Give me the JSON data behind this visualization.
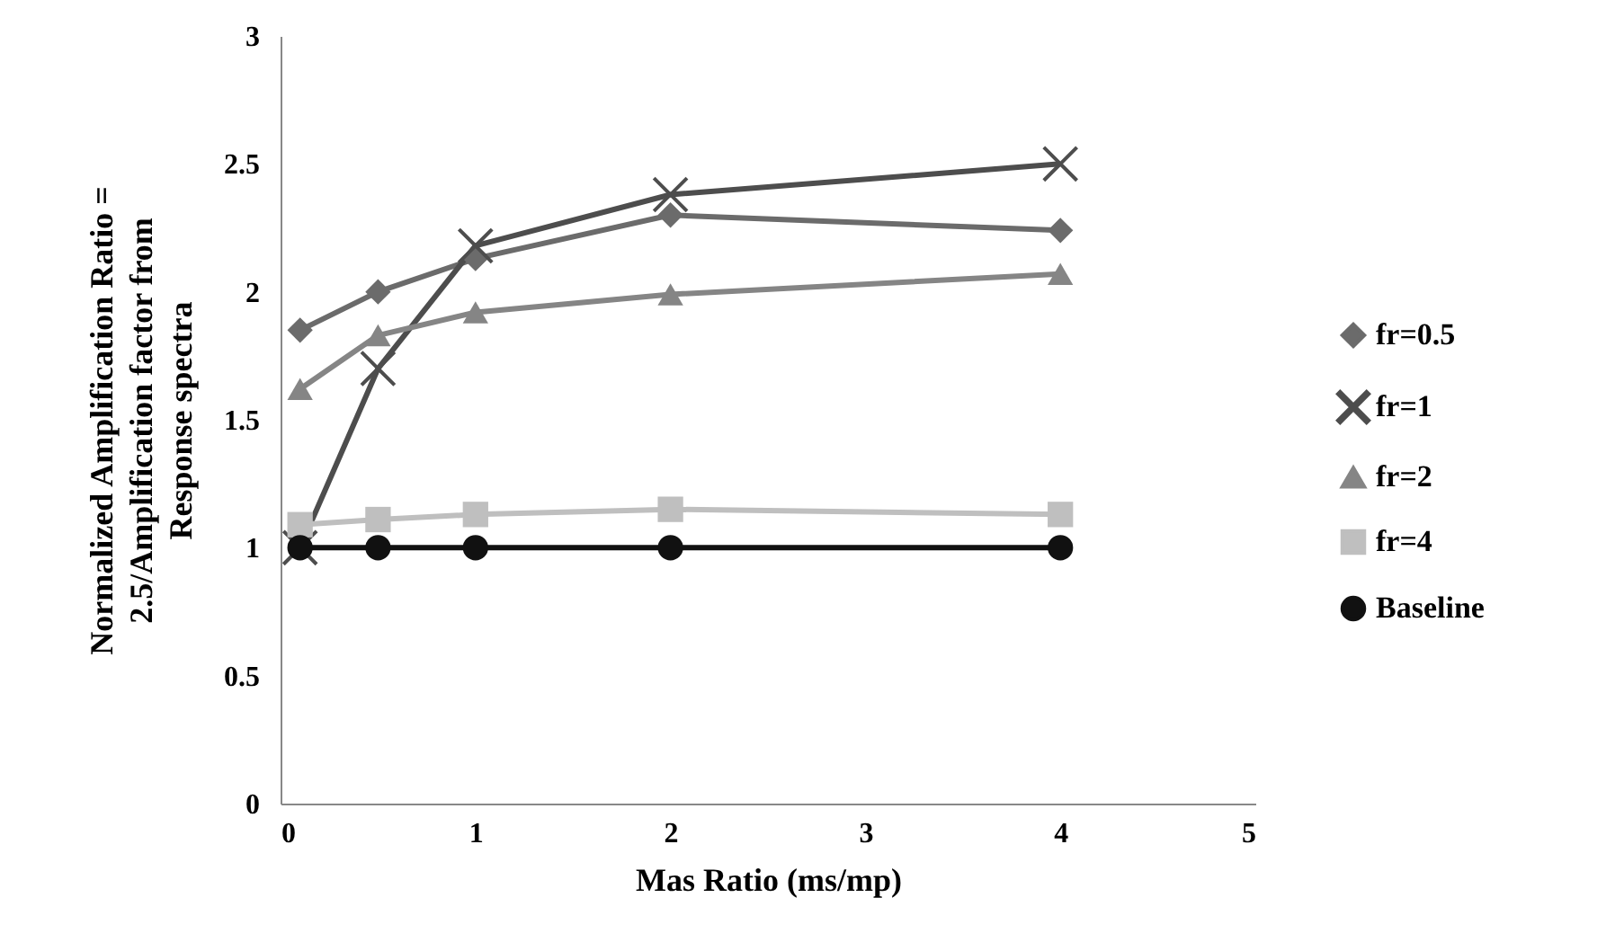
{
  "chart_data": {
    "type": "line",
    "xlabel": "Mas Ratio (ms/mp)",
    "ylabel": "Normalized Amplification Ratio =\n2.5/Amplification factor from\nResponse spectra",
    "x": [
      0.1,
      0.5,
      1,
      2,
      4
    ],
    "series": [
      {
        "name": "fr=0.5",
        "color": "#6b6b6b",
        "marker": "diamond",
        "values": [
          1.85,
          2.0,
          2.13,
          2.3,
          2.24
        ]
      },
      {
        "name": "fr=1",
        "color": "#4d4d4d",
        "marker": "cross",
        "values": [
          1.0,
          1.7,
          2.18,
          2.38,
          2.5
        ]
      },
      {
        "name": "fr=2",
        "color": "#858585",
        "marker": "triangle",
        "values": [
          1.62,
          1.83,
          1.92,
          1.99,
          2.07
        ]
      },
      {
        "name": "fr=4",
        "color": "#bfbfbf",
        "marker": "square",
        "values": [
          1.09,
          1.11,
          1.13,
          1.15,
          1.13
        ]
      },
      {
        "name": "Baseline",
        "color": "#111111",
        "marker": "circle",
        "values": [
          1,
          1,
          1,
          1,
          1
        ]
      }
    ],
    "xlim": [
      0,
      5
    ],
    "xticks": [
      0,
      1,
      2,
      3,
      4,
      5
    ],
    "ylim": [
      0,
      3
    ],
    "yticks": [
      0,
      0.5,
      1,
      1.5,
      2,
      2.5,
      3
    ],
    "grid": false,
    "legend": "right"
  }
}
